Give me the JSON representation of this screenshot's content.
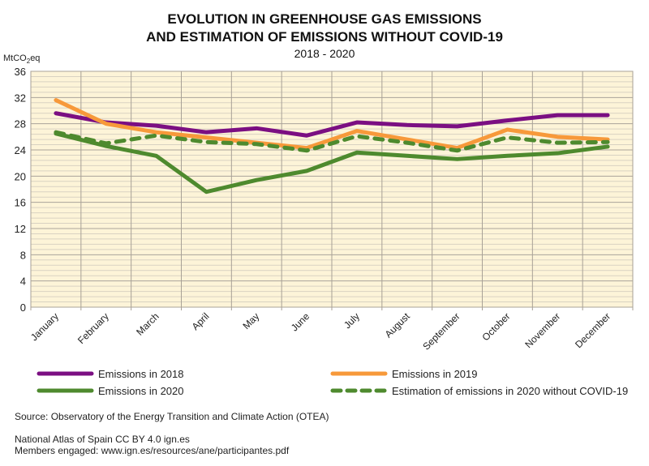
{
  "chart_data": {
    "type": "line",
    "title_line1": "EVOLUTION IN GREENHOUSE GAS EMISSIONS",
    "title_line2": "AND ESTIMATION OF EMISSIONS WITHOUT COVID-19",
    "subtitle": "2018 - 2020",
    "ylabel": "MtCO2eq",
    "ylim": [
      0,
      36
    ],
    "yticks": [
      0,
      4,
      8,
      12,
      16,
      20,
      24,
      28,
      32,
      36
    ],
    "grid": true,
    "legend_position": "bottom",
    "categories": [
      "January",
      "February",
      "March",
      "April",
      "May",
      "June",
      "July",
      "August",
      "September",
      "October",
      "November",
      "December"
    ],
    "series": [
      {
        "name": "Emissions in 2018",
        "color": "#7b0f82",
        "dashed": false,
        "values": [
          29.6,
          28.2,
          27.7,
          26.7,
          27.3,
          26.2,
          28.2,
          27.8,
          27.6,
          28.5,
          29.3,
          29.3
        ]
      },
      {
        "name": "Emissions in 2019",
        "color": "#f7993a",
        "dashed": false,
        "values": [
          31.6,
          28.0,
          26.7,
          25.9,
          25.1,
          24.3,
          26.9,
          25.6,
          24.3,
          27.1,
          26.0,
          25.6
        ]
      },
      {
        "name": "Emissions in 2020",
        "color": "#4e8a2e",
        "dashed": false,
        "values": [
          26.5,
          24.6,
          23.1,
          17.6,
          19.4,
          20.8,
          23.6,
          23.1,
          22.6,
          23.1,
          23.5,
          24.5
        ]
      },
      {
        "name": "Estimation of emissions in 2020 without COVID-19",
        "color": "#4e8a2e",
        "dashed": true,
        "values": [
          26.7,
          25.0,
          26.2,
          25.2,
          24.9,
          23.9,
          26.1,
          25.1,
          23.9,
          25.9,
          25.1,
          25.2
        ]
      }
    ],
    "plot_background": "#fdf4d8"
  },
  "footer": {
    "source": "Source: Observatory of the Energy Transition and Climate Action (OTEA)",
    "atlas": "National Atlas of Spain CC BY 4.0 ign.es",
    "members": "Members engaged: www.ign.es/resources/ane/participantes.pdf"
  }
}
